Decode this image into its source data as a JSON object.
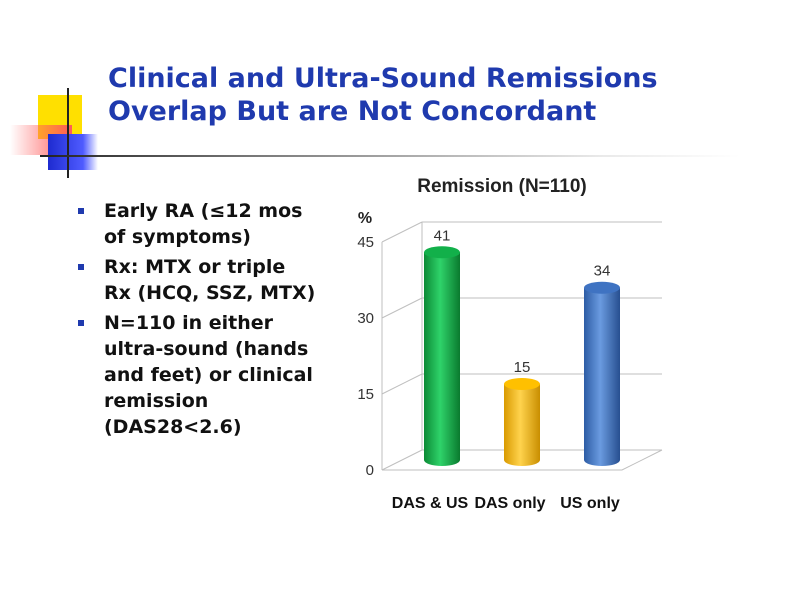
{
  "slide": {
    "title_lines": [
      "Clinical and Ultra-Sound Remissions",
      "Overlap But are Not Concordant"
    ],
    "bullets": [
      "Early RA (≤12 mos of symptoms)",
      "Rx: MTX or triple Rx (HCQ, SSZ, MTX)",
      "N=110 in either ultra-sound (hands and feet) or clinical remission (DAS28<2.6)"
    ],
    "colors": {
      "title": "#1F3AAE",
      "bullet_marker": "#1F3AAE"
    }
  },
  "chart_data": {
    "type": "bar",
    "title": "Remission (N=110)",
    "ylabel": "%",
    "ylim": [
      0,
      45
    ],
    "yticks": [
      0,
      15,
      30,
      45
    ],
    "grid": true,
    "categories": [
      "DAS & US",
      "DAS only",
      "US only"
    ],
    "values": [
      41,
      15,
      34
    ],
    "data_labels": [
      "41",
      "15",
      "34"
    ],
    "colors": [
      "#12B04A",
      "#FFC000",
      "#3F73C2"
    ],
    "style": "3d-cylinder"
  }
}
